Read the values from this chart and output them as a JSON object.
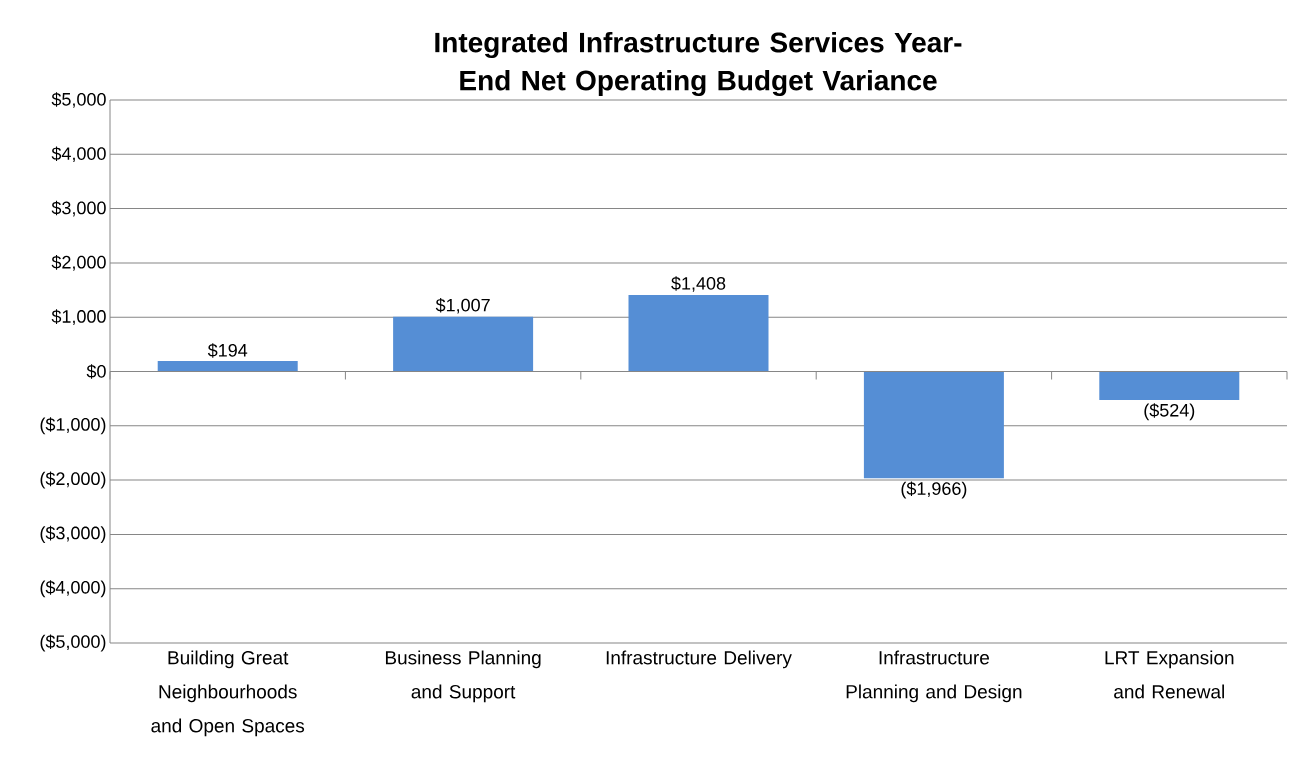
{
  "chart_data": {
    "type": "bar",
    "title": "Integrated Infrastructure Services Year-End Net Operating Budget Variance",
    "categories": [
      "Building Great Neighbourhoods and Open Spaces",
      "Business Planning and Support",
      "Infrastructure Delivery",
      "Infrastructure Planning and Design",
      "LRT Expansion and Renewal"
    ],
    "values": [
      194,
      1007,
      1408,
      -1966,
      -524
    ],
    "value_labels": [
      "$194",
      "$1,007",
      "$1,408",
      "($1,966)",
      "($524)"
    ],
    "color": "#558ed5",
    "ylim": [
      -5000,
      5000
    ],
    "yticks": [
      {
        "value": -5000,
        "label": "($5,000)"
      },
      {
        "value": -4000,
        "label": "($4,000)"
      },
      {
        "value": -3000,
        "label": "($3,000)"
      },
      {
        "value": -2000,
        "label": "($2,000)"
      },
      {
        "value": -1000,
        "label": "($1,000)"
      },
      {
        "value": 0,
        "label": "$0"
      },
      {
        "value": 1000,
        "label": "$1,000"
      },
      {
        "value": 2000,
        "label": "$2,000"
      },
      {
        "value": 3000,
        "label": "$3,000"
      },
      {
        "value": 4000,
        "label": "$4,000"
      },
      {
        "value": 5000,
        "label": "$5,000"
      }
    ],
    "grid": "y"
  }
}
